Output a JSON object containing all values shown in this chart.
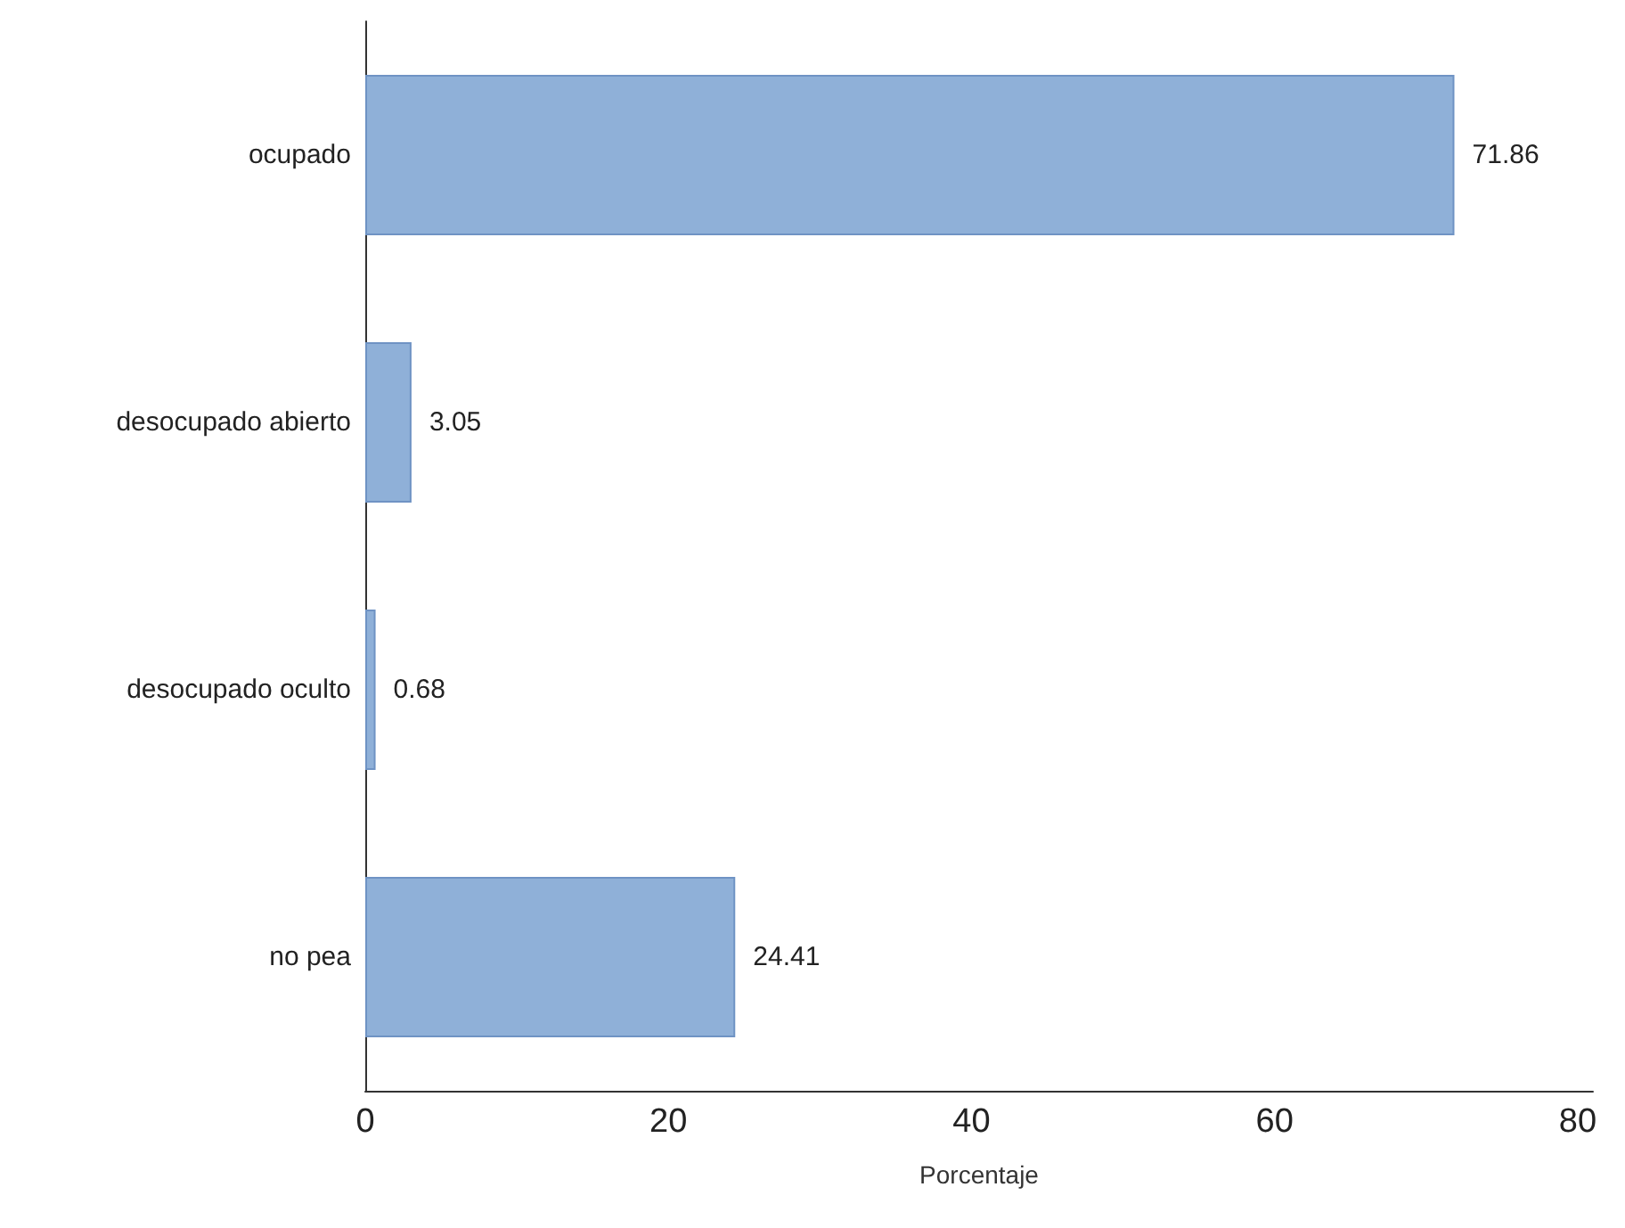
{
  "chart_data": {
    "type": "bar",
    "orientation": "horizontal",
    "categories": [
      "ocupado",
      "desocupado abierto",
      "desocupado oculto",
      "no pea"
    ],
    "values": [
      71.86,
      3.05,
      0.68,
      24.41
    ],
    "color": "#8fb0d8",
    "xlabel": "Porcentaje",
    "xlim": [
      0,
      81
    ],
    "xticks": [
      0,
      20,
      40,
      60,
      80
    ],
    "data_labels": true,
    "grid": false
  }
}
